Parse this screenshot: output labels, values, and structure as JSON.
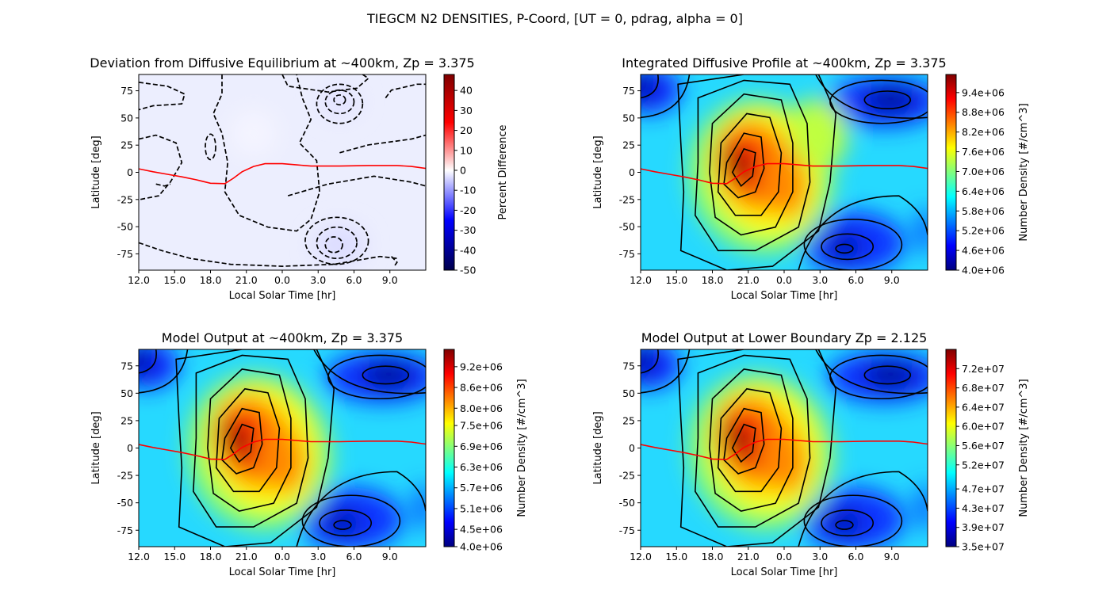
{
  "suptitle": "TIEGCM N2 DENSITIES, P-Coord, [UT = 0, pdrag, alpha = 0]",
  "chart_data": [
    {
      "type": "heatmap",
      "title": "Deviation from Diffusive Equilibrium at ~400km, Zp = 3.375",
      "xlabel": "Local Solar Time [hr]",
      "ylabel": "Latitude [deg]",
      "xticks": [
        "12.0",
        "15.0",
        "18.0",
        "21.0",
        "0.0",
        "3.0",
        "6.0",
        "9.0"
      ],
      "yticks": [
        "75",
        "50",
        "25",
        "0",
        "-25",
        "-50",
        "-75"
      ],
      "ylim": [
        -90,
        90
      ],
      "colormap": "seismic",
      "colorbar_label": "Percent Difference",
      "colorbar_ticks": [
        "40",
        "30",
        "20",
        "10",
        "0",
        "-10",
        "-20",
        "-30",
        "-40",
        "-50"
      ],
      "colorbar_range": [
        -50,
        48
      ],
      "contour_style": "dashed",
      "terminator_color": "#ff0000"
    },
    {
      "type": "heatmap",
      "title": "Integrated Diffusive Profile at ~400km, Zp = 3.375",
      "xlabel": "Local Solar Time [hr]",
      "ylabel": "Latitude [deg]",
      "xticks": [
        "12.0",
        "15.0",
        "18.0",
        "21.0",
        "0.0",
        "3.0",
        "6.0",
        "9.0"
      ],
      "yticks": [
        "75",
        "50",
        "25",
        "0",
        "-25",
        "-50",
        "-75"
      ],
      "ylim": [
        -90,
        90
      ],
      "colormap": "jet",
      "colorbar_label": "Number Density [#/cm^3]",
      "colorbar_ticks": [
        "9.4e+06",
        "8.8e+06",
        "8.2e+06",
        "7.6e+06",
        "7.0e+06",
        "6.4e+06",
        "5.8e+06",
        "5.2e+06",
        "4.6e+06",
        "4.0e+06"
      ],
      "colorbar_range": [
        4000000.0,
        9950000.0
      ],
      "contour_style": "solid",
      "terminator_color": "#ff0000"
    },
    {
      "type": "heatmap",
      "title": "Model Output at ~400km, Zp = 3.375",
      "xlabel": "Local Solar Time [hr]",
      "ylabel": "Latitude [deg]",
      "xticks": [
        "12.0",
        "15.0",
        "18.0",
        "21.0",
        "0.0",
        "3.0",
        "6.0",
        "9.0"
      ],
      "yticks": [
        "75",
        "50",
        "25",
        "0",
        "-25",
        "-50",
        "-75"
      ],
      "ylim": [
        -90,
        90
      ],
      "colormap": "jet",
      "colorbar_label": "Number Density [#/cm^3]",
      "colorbar_ticks": [
        "9.2e+06",
        "8.6e+06",
        "8.0e+06",
        "7.5e+06",
        "6.9e+06",
        "6.3e+06",
        "5.7e+06",
        "5.1e+06",
        "4.5e+06",
        "4.0e+06"
      ],
      "colorbar_range": [
        4000000.0,
        9700000.0
      ],
      "contour_style": "solid",
      "terminator_color": "#ff0000"
    },
    {
      "type": "heatmap",
      "title": "Model Output at Lower Boundary Zp = 2.125",
      "xlabel": "Local Solar Time [hr]",
      "ylabel": "Latitude [deg]",
      "xticks": [
        "12.0",
        "15.0",
        "18.0",
        "21.0",
        "0.0",
        "3.0",
        "6.0",
        "9.0"
      ],
      "yticks": [
        "75",
        "50",
        "25",
        "0",
        "-25",
        "-50",
        "-75"
      ],
      "ylim": [
        -90,
        90
      ],
      "colormap": "jet",
      "colorbar_label": "Number Density [#/cm^3]",
      "colorbar_ticks": [
        "7.2e+07",
        "6.8e+07",
        "6.4e+07",
        "6.0e+07",
        "5.6e+07",
        "5.2e+07",
        "4.7e+07",
        "4.3e+07",
        "3.9e+07",
        "3.5e+07"
      ],
      "colorbar_range": [
        35000000.0,
        76000000.0
      ],
      "contour_style": "solid",
      "terminator_color": "#ff0000"
    }
  ]
}
